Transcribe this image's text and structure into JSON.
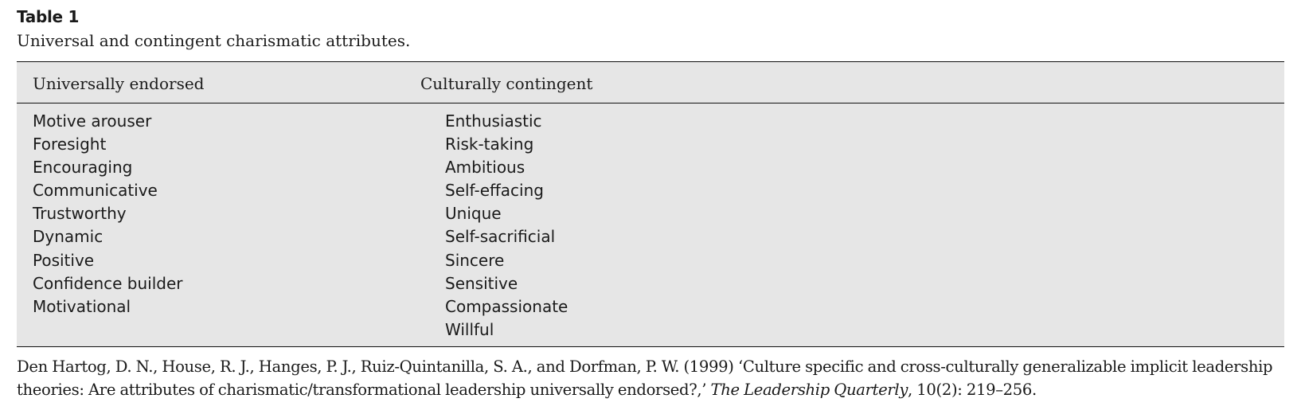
{
  "table": {
    "label": "Table 1",
    "caption": "Universal and contingent charismatic attributes.",
    "columns": [
      {
        "header": "Universally endorsed",
        "items": [
          "Motive arouser",
          "Foresight",
          "Encouraging",
          "Communicative",
          "Trustworthy",
          "Dynamic",
          "Positive",
          "Confidence builder",
          "Motivational"
        ]
      },
      {
        "header": "Culturally contingent",
        "items": [
          "Enthusiastic",
          "Risk-taking",
          "Ambitious",
          "Self-effacing",
          "Unique",
          "Self-sacrificial",
          "Sincere",
          "Sensitive",
          "Compassionate",
          "Willful"
        ]
      }
    ]
  },
  "source": {
    "line1": "Den Hartog, D. N., House, R. J., Hanges, P. J., Ruiz-Quintanilla, S. A., and Dorfman, P. W. (1999) ‘Culture specific and cross-culturally generalizable implicit leadership",
    "line2_before": "theories: Are attributes of charismatic/transformational leadership universally endorsed?,’ ",
    "journal": "The Leadership Quarterly",
    "line2_after": ", 10(2): 219–256."
  }
}
